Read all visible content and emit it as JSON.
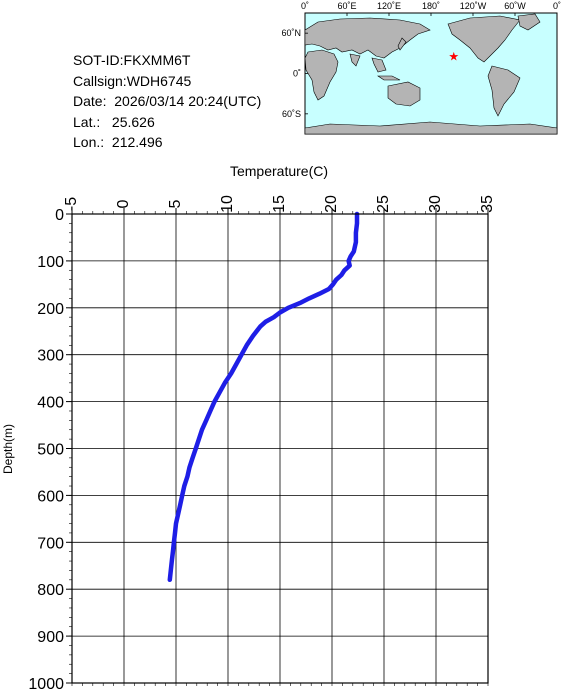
{
  "info": {
    "sot_id": "SOT-ID:FKXMM6T",
    "callsign": "Callsign:WDH6745",
    "date": "Date:  2026/03/14 20:24(UTC)",
    "lat": "Lat.:   25.626",
    "lon": "Lon.:  212.496"
  },
  "map": {
    "lon_labels": [
      "0˚",
      "60˚E",
      "120˚E",
      "180˚",
      "120˚W",
      "60˚W",
      "0˚"
    ],
    "lat_labels": [
      "60˚N",
      "0˚",
      "60˚S"
    ],
    "ocean_color": "#c8ffff",
    "land_color": "#b4b4b4",
    "marker_color": "#ff0000",
    "marker": {
      "lon": 212.496,
      "lat": 25.626
    }
  },
  "chart_data": {
    "type": "line",
    "xlabel": "Temperature(C)",
    "ylabel": "Depth(m)",
    "xlim": [
      -5,
      35
    ],
    "ylim": [
      1000,
      0
    ],
    "x_ticks": [
      "-5",
      "0",
      "5",
      "10",
      "15",
      "20",
      "25",
      "30",
      "35"
    ],
    "y_ticks": [
      "0",
      "100",
      "200",
      "300",
      "400",
      "500",
      "600",
      "700",
      "800",
      "900",
      "1000"
    ],
    "grid": true,
    "line_color": "#1e1ee6",
    "series": [
      {
        "depth": [
          0,
          20,
          40,
          60,
          80,
          90,
          100,
          110,
          120,
          130,
          140,
          150,
          160,
          170,
          180,
          190,
          200,
          210,
          220,
          230,
          240,
          260,
          280,
          300,
          320,
          340,
          360,
          380,
          400,
          420,
          440,
          460,
          480,
          500,
          520,
          540,
          560,
          580,
          600,
          620,
          640,
          660,
          680,
          700,
          720,
          740,
          760,
          780
        ],
        "temperature": [
          22.4,
          22.4,
          22.3,
          22.3,
          22.1,
          21.8,
          21.6,
          21.7,
          21.2,
          20.9,
          20.4,
          20.1,
          19.7,
          18.8,
          17.8,
          16.9,
          15.8,
          15.0,
          14.4,
          13.6,
          13.1,
          12.4,
          11.8,
          11.3,
          10.8,
          10.3,
          9.7,
          9.2,
          8.7,
          8.3,
          7.9,
          7.5,
          7.2,
          6.9,
          6.6,
          6.3,
          6.1,
          5.8,
          5.6,
          5.4,
          5.2,
          5.0,
          4.9,
          4.8,
          4.7,
          4.6,
          4.5,
          4.4
        ]
      }
    ]
  }
}
